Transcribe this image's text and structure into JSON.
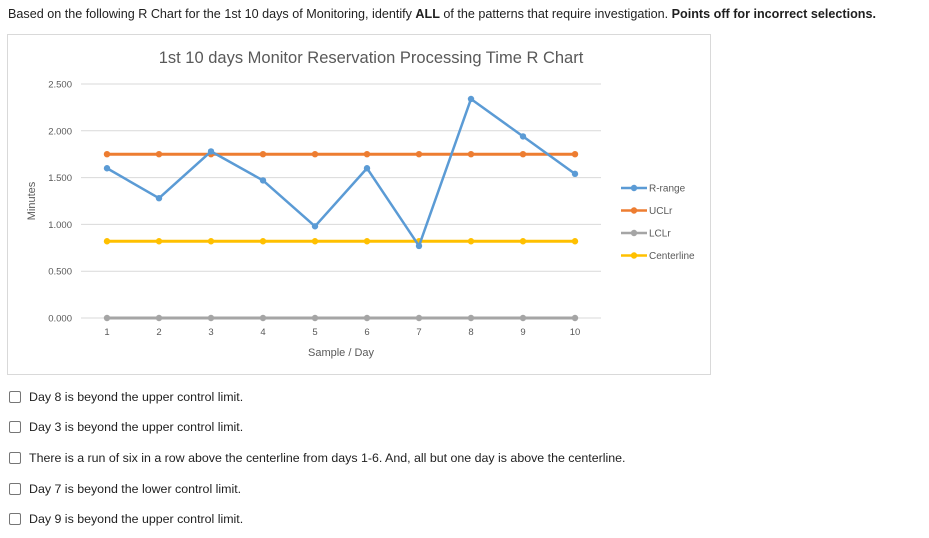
{
  "question": {
    "prefix": "Based on the following R Chart for the 1st 10 days of Monitoring, identify ",
    "emph": "ALL",
    "middle": " of the patterns that require investigation. ",
    "bold_tail": "Points off for incorrect selections."
  },
  "chart_data": {
    "type": "line",
    "title": "1st 10 days Monitor Reservation Processing Time R Chart",
    "xlabel": "Sample / Day",
    "ylabel": "Minutes",
    "x": [
      1,
      2,
      3,
      4,
      5,
      6,
      7,
      8,
      9,
      10
    ],
    "x_tick_labels": [
      "1",
      "2",
      "3",
      "4",
      "5",
      "6",
      "7",
      "8",
      "9",
      "10"
    ],
    "y_tick_labels": [
      "2.500",
      "2.000",
      "1.500",
      "1.000",
      "0.500",
      "0.000"
    ],
    "ylim": [
      0,
      2.5
    ],
    "grid": "horizontal",
    "legend_position": "right",
    "series": [
      {
        "name": "R-range",
        "color": "#5b9bd5",
        "values": [
          1.6,
          1.28,
          1.78,
          1.47,
          0.98,
          1.6,
          0.77,
          2.34,
          1.94,
          1.54
        ]
      },
      {
        "name": "UCLr",
        "color": "#ed7d31",
        "values": [
          1.75,
          1.75,
          1.75,
          1.75,
          1.75,
          1.75,
          1.75,
          1.75,
          1.75,
          1.75
        ]
      },
      {
        "name": "LCLr",
        "color": "#a5a5a5",
        "values": [
          0,
          0,
          0,
          0,
          0,
          0,
          0,
          0,
          0,
          0
        ]
      },
      {
        "name": "Centerline",
        "color": "#ffc000",
        "values": [
          0.82,
          0.82,
          0.82,
          0.82,
          0.82,
          0.82,
          0.82,
          0.82,
          0.82,
          0.82
        ]
      }
    ]
  },
  "options": [
    {
      "label": "Day 8 is beyond the upper control limit."
    },
    {
      "label": "Day 3 is beyond the upper control limit."
    },
    {
      "label": "There is a run of six in a row above the centerline from days 1-6. And, all but one day is above the centerline."
    },
    {
      "label": "Day 7 is beyond the lower control limit."
    },
    {
      "label": "Day 9 is beyond the upper control limit."
    }
  ]
}
